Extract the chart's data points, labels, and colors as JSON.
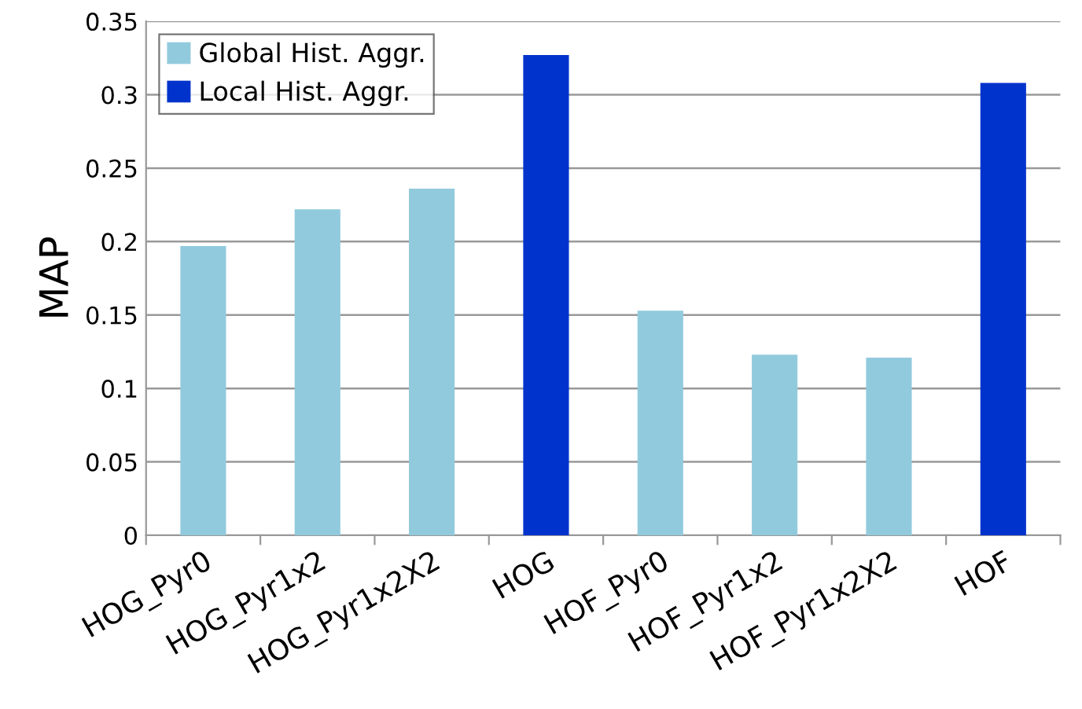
{
  "chart_data": {
    "type": "bar",
    "ylabel": "MAP",
    "categories": [
      "HOG_Pyr0",
      "HOG_Pyr1x2",
      "HOG_Pyr1x2X2",
      "HOG",
      "HOF_Pyr0",
      "HOF_Pyr1x2",
      "HOF_Pyr1x2X2",
      "HOF"
    ],
    "series": [
      {
        "name": "Global Hist. Aggr.",
        "color": "#92cadd",
        "values": [
          0.197,
          0.222,
          0.236,
          null,
          0.153,
          0.123,
          0.121,
          null
        ]
      },
      {
        "name": "Local Hist. Aggr.",
        "color": "#0033cc",
        "values": [
          null,
          null,
          null,
          0.327,
          null,
          null,
          null,
          0.308
        ]
      }
    ],
    "ylim": [
      0,
      0.35
    ],
    "yticks": [
      0,
      0.05,
      0.1,
      0.15,
      0.2,
      0.25,
      0.3,
      0.35
    ],
    "grid": "y",
    "legend": "top left"
  }
}
